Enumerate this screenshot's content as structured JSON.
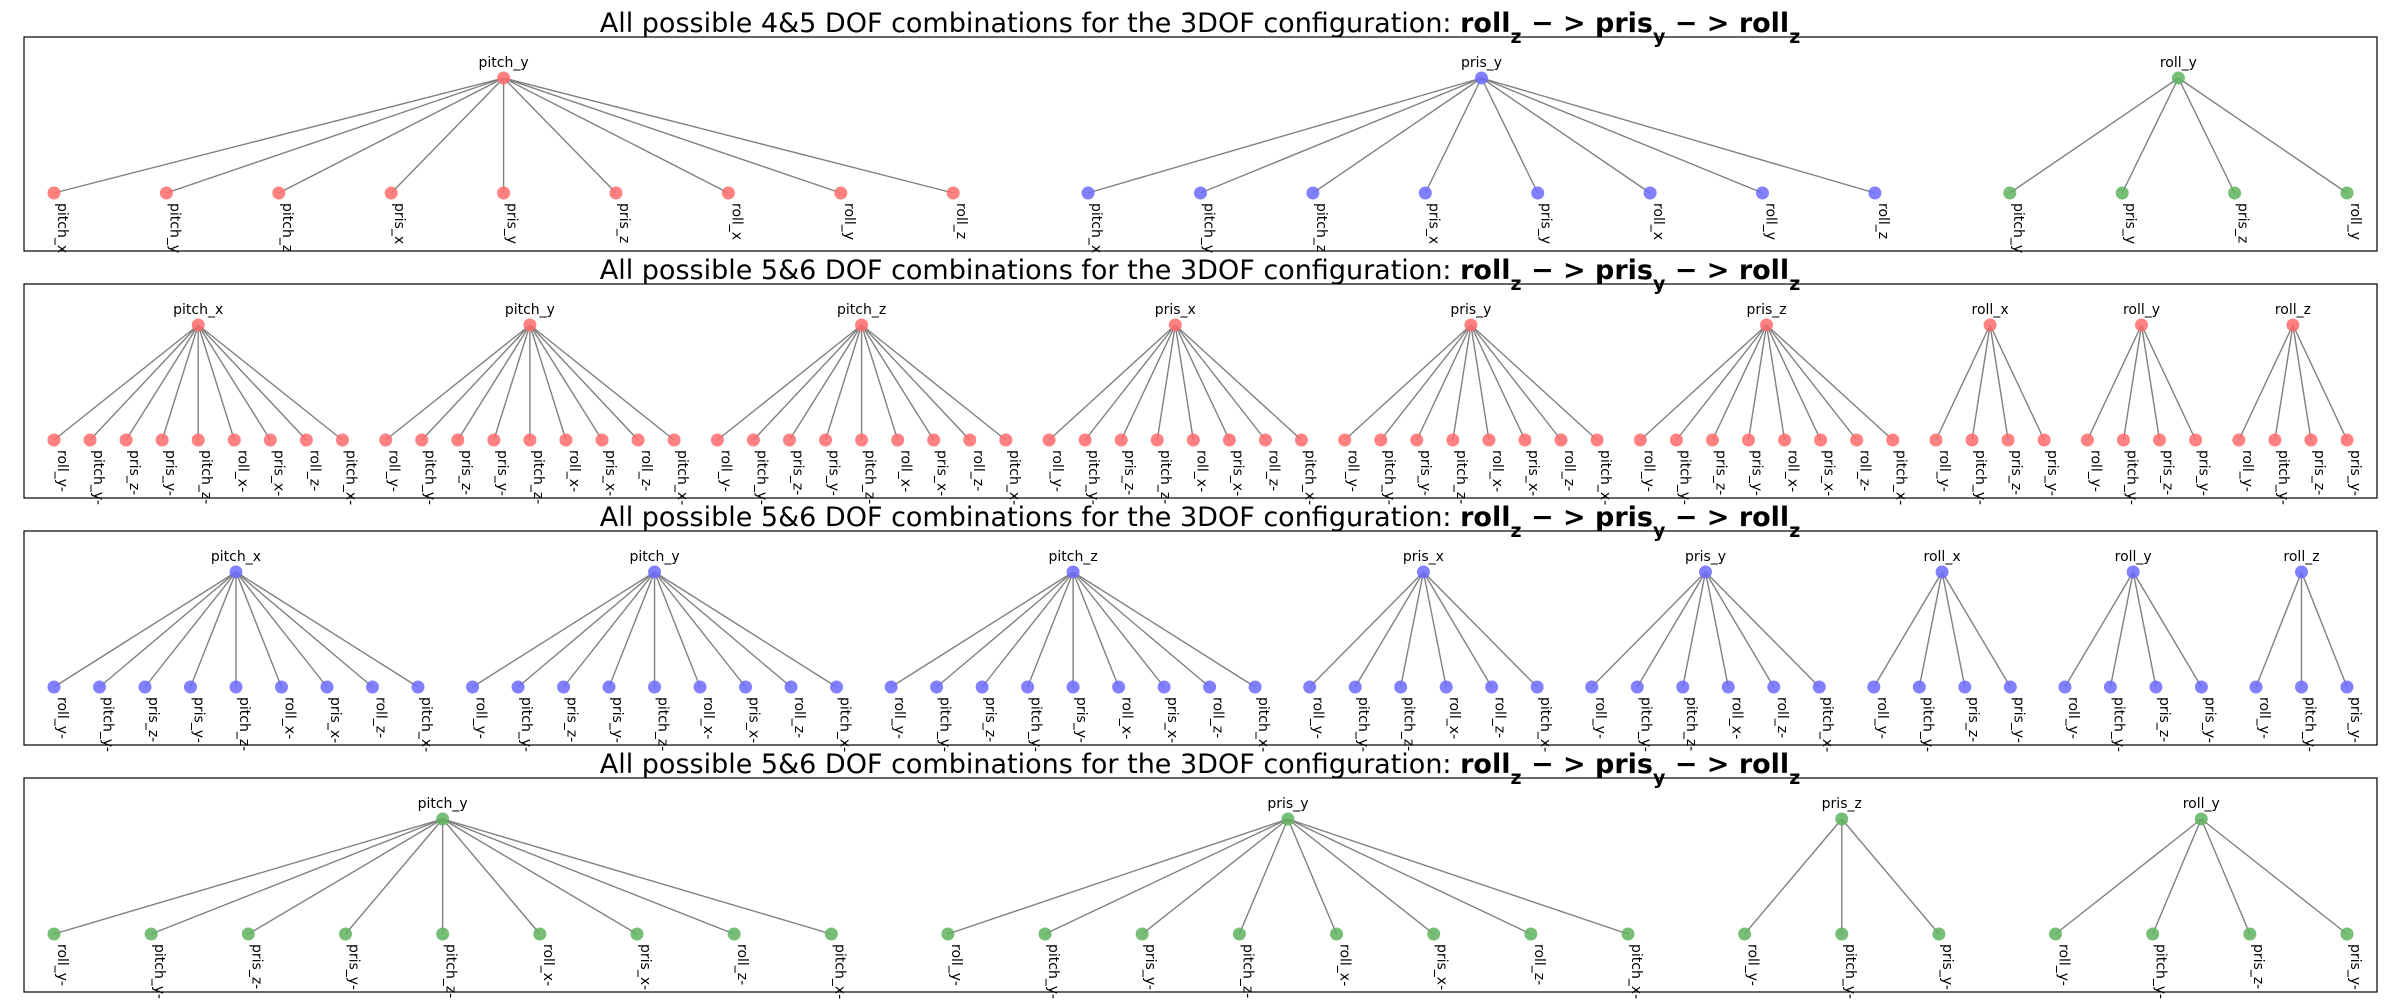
{
  "figure": {
    "colors": {
      "red": "#ff6b6b",
      "blue": "#6b6bff",
      "green": "#5fb35f",
      "edge": "#808080"
    },
    "panels": [
      {
        "title_prefix": "All possible 4&5 DOF combinations for the 3DOF configuration: ",
        "title_math": "roll_z − > pris_y − > roll_z",
        "groups": [
          {
            "root": "pitch_y",
            "color": "red",
            "leaves": [
              "pitch_x",
              "pitch_y",
              "pitch_z",
              "pris_x",
              "pris_y",
              "pris_z",
              "roll_x",
              "roll_y",
              "roll_z"
            ]
          },
          {
            "root": "pris_y",
            "color": "blue",
            "leaves": [
              "pitch_x",
              "pitch_y",
              "pitch_z",
              "pris_x",
              "pris_y",
              "roll_x",
              "roll_y",
              "roll_z"
            ]
          },
          {
            "root": "roll_y",
            "color": "green",
            "leaves": [
              "pitch_y",
              "pris_y",
              "pris_z",
              "roll_y"
            ]
          }
        ]
      },
      {
        "title_prefix": "All possible 5&6 DOF combinations for the 3DOF configuration: ",
        "title_math": "roll_z − > pris_y − > roll_z",
        "groups": [
          {
            "root": "pitch_x",
            "color": "red",
            "leaves": [
              "roll_y-",
              "pitch_y-",
              "pris_z-",
              "pris_y-",
              "pitch_z-",
              "roll_x-",
              "pris_x-",
              "roll_z-",
              "pitch_x-"
            ]
          },
          {
            "root": "pitch_y",
            "color": "red",
            "leaves": [
              "roll_y-",
              "pitch_y-",
              "pris_z-",
              "pris_y-",
              "pitch_z-",
              "roll_x-",
              "pris_x-",
              "roll_z-",
              "pitch_x-"
            ]
          },
          {
            "root": "pitch_z",
            "color": "red",
            "leaves": [
              "roll_y-",
              "pitch_y-",
              "pris_z-",
              "pris_y-",
              "pitch_z-",
              "roll_x-",
              "pris_x-",
              "roll_z-",
              "pitch_x-"
            ]
          },
          {
            "root": "pris_x",
            "color": "red",
            "leaves": [
              "roll_y-",
              "pitch_y-",
              "pris_z-",
              "pitch_z-",
              "roll_x-",
              "pris_x-",
              "roll_z-",
              "pitch_x-"
            ]
          },
          {
            "root": "pris_y",
            "color": "red",
            "leaves": [
              "roll_y-",
              "pitch_y-",
              "pris_y-",
              "pitch_z-",
              "roll_x-",
              "pris_x-",
              "roll_z-",
              "pitch_x-"
            ]
          },
          {
            "root": "pris_z",
            "color": "red",
            "leaves": [
              "roll_y-",
              "pitch_y-",
              "pris_z-",
              "pris_y-",
              "roll_x-",
              "pris_x-",
              "roll_z-",
              "pitch_x-"
            ]
          },
          {
            "root": "roll_x",
            "color": "red",
            "leaves": [
              "roll_y-",
              "pitch_y-",
              "pris_z-",
              "pris_y-"
            ]
          },
          {
            "root": "roll_y",
            "color": "red",
            "leaves": [
              "roll_y-",
              "pitch_y-",
              "pris_z-",
              "pris_y-"
            ]
          },
          {
            "root": "roll_z",
            "color": "red",
            "leaves": [
              "roll_y-",
              "pitch_y-",
              "pris_z-",
              "pris_y-"
            ]
          }
        ]
      },
      {
        "title_prefix": "All possible 5&6 DOF combinations for the 3DOF configuration: ",
        "title_math": "roll_z − > pris_y − > roll_z",
        "groups": [
          {
            "root": "pitch_x",
            "color": "blue",
            "leaves": [
              "roll_y-",
              "pitch_y-",
              "pris_z-",
              "pris_y-",
              "pitch_z-",
              "roll_x-",
              "pris_x-",
              "roll_z-",
              "pitch_x-"
            ]
          },
          {
            "root": "pitch_y",
            "color": "blue",
            "leaves": [
              "roll_y-",
              "pitch_y-",
              "pris_z-",
              "pris_y-",
              "pitch_z-",
              "roll_x-",
              "pris_x-",
              "roll_z-",
              "pitch_x-"
            ]
          },
          {
            "root": "pitch_z",
            "color": "blue",
            "leaves": [
              "roll_y-",
              "pitch_y-",
              "pris_z-",
              "pitch_y-",
              "pris_y-",
              "roll_x-",
              "pris_x-",
              "roll_z-",
              "pitch_x-"
            ]
          },
          {
            "root": "pris_x",
            "color": "blue",
            "leaves": [
              "roll_y-",
              "pitch_y-",
              "pitch_z-",
              "roll_x-",
              "roll_z-",
              "pitch_x-"
            ]
          },
          {
            "root": "pris_y",
            "color": "blue",
            "leaves": [
              "roll_y-",
              "pitch_y-",
              "pitch_z-",
              "roll_x-",
              "roll_z-",
              "pitch_x-"
            ]
          },
          {
            "root": "roll_x",
            "color": "blue",
            "leaves": [
              "roll_y-",
              "pitch_y-",
              "pris_z-",
              "pris_y-"
            ]
          },
          {
            "root": "roll_y",
            "color": "blue",
            "leaves": [
              "roll_y-",
              "pitch_y-",
              "pris_z-",
              "pris_y-"
            ]
          },
          {
            "root": "roll_z",
            "color": "blue",
            "leaves": [
              "roll_y-",
              "pitch_y-",
              "pris_y-"
            ]
          }
        ]
      },
      {
        "title_prefix": "All possible 5&6 DOF combinations for the 3DOF configuration: ",
        "title_math": "roll_z − > pris_y − > roll_z",
        "groups": [
          {
            "root": "pitch_y",
            "color": "green",
            "leaves": [
              "roll_y-",
              "pitch_y-",
              "pris_z-",
              "pris_y-",
              "pitch_z-",
              "roll_x-",
              "pris_x-",
              "roll_z-",
              "pitch_x-"
            ]
          },
          {
            "root": "pris_y",
            "color": "green",
            "leaves": [
              "roll_y-",
              "pitch_y-",
              "pris_y-",
              "pitch_z-",
              "roll_x-",
              "pris_x-",
              "roll_z-",
              "pitch_x-"
            ]
          },
          {
            "root": "pris_z",
            "color": "green",
            "leaves": [
              "roll_y-",
              "pitch_y-",
              "pris_y-"
            ]
          },
          {
            "root": "roll_y",
            "color": "green",
            "leaves": [
              "roll_y-",
              "pitch_y-",
              "pris_z-",
              "pris_y-"
            ]
          }
        ]
      }
    ]
  }
}
